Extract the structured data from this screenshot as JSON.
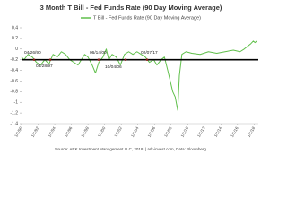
{
  "chart_data": {
    "type": "line",
    "title": "3 Month T Bill - Fed Funds Rate (90 Day Moving Average)",
    "source": "Source: ARK Investment Management LLC, 2018. | ark-invest.com, Data: Bloomberg.",
    "x": [
      1990.0,
      1990.3,
      1990.8,
      1991.3,
      1991.8,
      1992.3,
      1992.8,
      1993.3,
      1993.8,
      1994.3,
      1994.8,
      1995.3,
      1995.8,
      1996.3,
      1996.8,
      1997.2,
      1997.6,
      1998.0,
      1998.5,
      1998.9,
      1999.3,
      1999.8,
      2000.2,
      2000.5,
      2000.9,
      2001.4,
      2001.9,
      2002.4,
      2002.9,
      2003.4,
      2003.9,
      2004.4,
      2004.9,
      2005.4,
      2005.9,
      2006.3,
      2006.8,
      2007.2,
      2007.6,
      2007.9,
      2008.2,
      2008.5,
      2008.8,
      2009.0,
      2009.3,
      2009.8,
      2010.5,
      2011.5,
      2012.5,
      2013.5,
      2014.5,
      2015.5,
      2016.3,
      2016.8,
      2017.2,
      2017.6,
      2017.9,
      2018.1,
      2018.3
    ],
    "series": [
      {
        "name": "T Bill - Fed Funds Rate (90 Day Moving Average)",
        "color": "#5fbf4a",
        "values": [
          -0.15,
          -0.2,
          -0.1,
          -0.15,
          -0.25,
          -0.3,
          -0.2,
          -0.28,
          -0.1,
          -0.15,
          -0.05,
          -0.1,
          -0.2,
          -0.25,
          -0.3,
          -0.2,
          -0.1,
          -0.15,
          -0.3,
          -0.45,
          -0.25,
          -0.15,
          0.0,
          -0.2,
          -0.1,
          -0.15,
          -0.3,
          -0.1,
          -0.05,
          -0.1,
          -0.05,
          -0.1,
          -0.15,
          -0.25,
          -0.2,
          -0.3,
          -0.2,
          -0.15,
          -0.4,
          -0.6,
          -0.8,
          -0.9,
          -1.15,
          -0.5,
          -0.1,
          -0.05,
          -0.08,
          -0.1,
          -0.05,
          -0.08,
          -0.05,
          -0.02,
          -0.05,
          0.0,
          0.05,
          0.1,
          0.15,
          0.12,
          0.15
        ]
      }
    ],
    "reference_line": -0.2,
    "annotations": [
      "04/26/90",
      "03/28/97",
      "06/14/00",
      "10/04/06",
      "02/07/17"
    ],
    "xlim": [
      1990,
      2018.5
    ],
    "xticks": [
      {
        "value": 1990,
        "label": "1/1/90"
      },
      {
        "value": 1992,
        "label": "1/1/92"
      },
      {
        "value": 1994,
        "label": "1/1/94"
      },
      {
        "value": 1996,
        "label": "1/1/96"
      },
      {
        "value": 1998,
        "label": "1/1/98"
      },
      {
        "value": 2000,
        "label": "1/1/00"
      },
      {
        "value": 2002,
        "label": "1/1/02"
      },
      {
        "value": 2004,
        "label": "1/1/04"
      },
      {
        "value": 2006,
        "label": "1/1/06"
      },
      {
        "value": 2008,
        "label": "1/1/08"
      },
      {
        "value": 2010,
        "label": "1/1/10"
      },
      {
        "value": 2012,
        "label": "1/1/12"
      },
      {
        "value": 2014,
        "label": "1/1/14"
      },
      {
        "value": 2016,
        "label": "1/1/16"
      },
      {
        "value": 2018,
        "label": "1/1/18"
      }
    ],
    "ylim": [
      -1.4,
      0.4
    ],
    "yticks": [
      0.4,
      0.2,
      0,
      -0.2,
      -0.4,
      -0.6,
      -0.8,
      -1,
      -1.2,
      -1.4
    ],
    "grid": false
  }
}
